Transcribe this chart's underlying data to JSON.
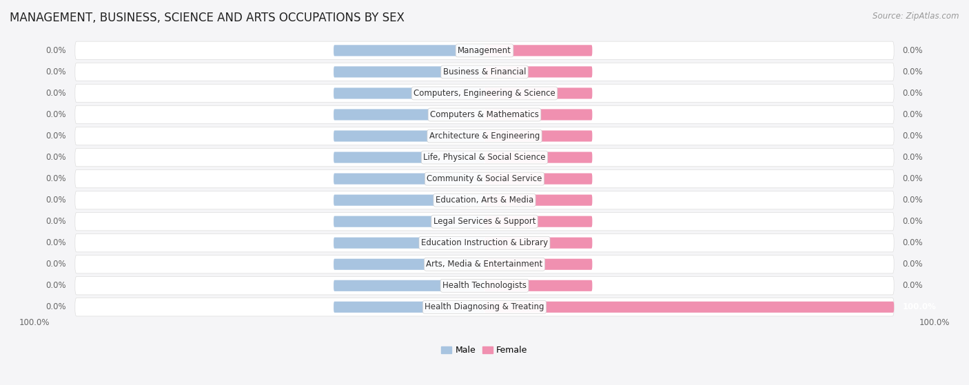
{
  "title": "MANAGEMENT, BUSINESS, SCIENCE AND ARTS OCCUPATIONS BY SEX",
  "source": "Source: ZipAtlas.com",
  "categories": [
    "Management",
    "Business & Financial",
    "Computers, Engineering & Science",
    "Computers & Mathematics",
    "Architecture & Engineering",
    "Life, Physical & Social Science",
    "Community & Social Service",
    "Education, Arts & Media",
    "Legal Services & Support",
    "Education Instruction & Library",
    "Arts, Media & Entertainment",
    "Health Technologists",
    "Health Diagnosing & Treating"
  ],
  "male_values": [
    0.0,
    0.0,
    0.0,
    0.0,
    0.0,
    0.0,
    0.0,
    0.0,
    0.0,
    0.0,
    0.0,
    0.0,
    0.0
  ],
  "female_values": [
    0.0,
    0.0,
    0.0,
    0.0,
    0.0,
    0.0,
    0.0,
    0.0,
    0.0,
    0.0,
    0.0,
    0.0,
    100.0
  ],
  "male_color": "#a8c4e0",
  "female_color": "#f090b0",
  "male_bg_width": [
    40,
    35,
    25,
    30,
    30,
    25,
    25,
    28,
    28,
    22,
    28,
    28,
    15
  ],
  "female_bg_width": [
    30,
    25,
    10,
    20,
    20,
    15,
    15,
    15,
    15,
    15,
    15,
    15,
    100
  ],
  "row_bg_color": "#f5f5f7",
  "row_border_color": "#dddddd",
  "bg_color": "#f5f5f7",
  "title_fontsize": 12,
  "label_fontsize": 9,
  "value_fontsize": 9
}
